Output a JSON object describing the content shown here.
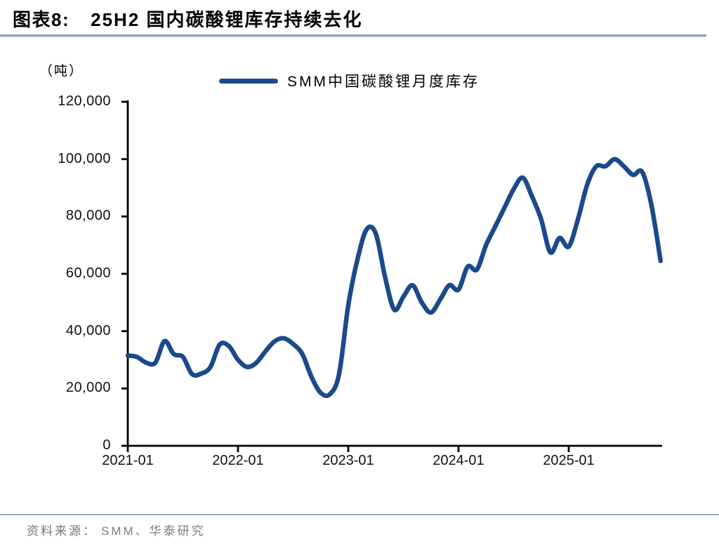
{
  "header": {
    "tag": "图表8:",
    "title": "25H2 国内碳酸锂库存持续去化"
  },
  "footer": {
    "source_label": "资料来源：",
    "source_text": "SMM、华泰研究"
  },
  "chart_data": {
    "type": "line",
    "title": "25H2 国内碳酸锂库存持续去化",
    "unit_label": "（吨）",
    "legend": [
      "SMM中国碳酸锂月度库存"
    ],
    "legend_position": "top-center",
    "grid": false,
    "ylim": [
      0,
      120000
    ],
    "y_ticks": [
      0,
      20000,
      40000,
      60000,
      80000,
      100000,
      120000
    ],
    "x_ticks": [
      {
        "label": "2021-01",
        "month_index": 0
      },
      {
        "label": "2022-01",
        "month_index": 12
      },
      {
        "label": "2023-01",
        "month_index": 24
      },
      {
        "label": "2024-01",
        "month_index": 36
      },
      {
        "label": "2025-01",
        "month_index": 48
      }
    ],
    "line_color": "#1b4a8c",
    "axis_color": "#000000",
    "series": [
      {
        "name": "SMM中国碳酸锂月度库存",
        "x": [
          "2021-01",
          "2021-02",
          "2021-03",
          "2021-04",
          "2021-05",
          "2021-06",
          "2021-07",
          "2021-08",
          "2021-09",
          "2021-10",
          "2021-11",
          "2021-12",
          "2022-01",
          "2022-02",
          "2022-03",
          "2022-04",
          "2022-05",
          "2022-06",
          "2022-07",
          "2022-08",
          "2022-09",
          "2022-10",
          "2022-11",
          "2022-12",
          "2023-01",
          "2023-02",
          "2023-03",
          "2023-04",
          "2023-05",
          "2023-06",
          "2023-07",
          "2023-08",
          "2023-09",
          "2023-10",
          "2023-11",
          "2023-12",
          "2024-01",
          "2024-02",
          "2024-03",
          "2024-04",
          "2024-05",
          "2024-06",
          "2024-07",
          "2024-08",
          "2024-09",
          "2024-10",
          "2024-11",
          "2024-12",
          "2025-01",
          "2025-02",
          "2025-03",
          "2025-04",
          "2025-05",
          "2025-06",
          "2025-07",
          "2025-08",
          "2025-09",
          "2025-10",
          "2025-11"
        ],
        "values": [
          31500,
          31000,
          29000,
          29000,
          36500,
          32000,
          31000,
          25000,
          25200,
          27500,
          35300,
          34800,
          30000,
          27500,
          29000,
          33000,
          36500,
          37500,
          35500,
          32000,
          24000,
          18500,
          18000,
          25000,
          49000,
          65000,
          75500,
          74000,
          59000,
          47500,
          52000,
          56000,
          50000,
          46500,
          51000,
          56000,
          54500,
          62500,
          61500,
          70000,
          76500,
          83000,
          89500,
          93500,
          87000,
          79000,
          67500,
          72500,
          69500,
          79000,
          91000,
          97500,
          97500,
          100000,
          97500,
          94500,
          95500,
          84000,
          64500
        ]
      }
    ]
  }
}
